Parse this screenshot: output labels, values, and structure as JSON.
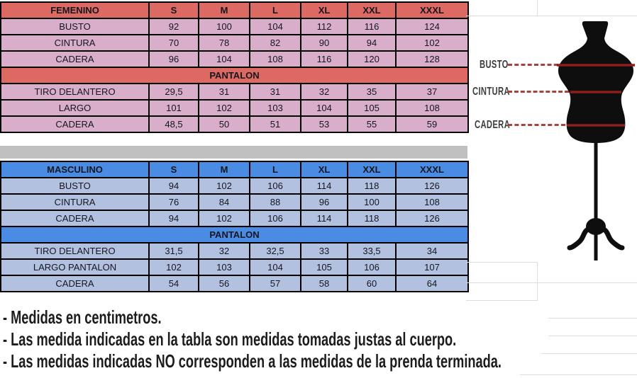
{
  "colors": {
    "female_header_bg": "#DC6A62",
    "female_cell_bg": "#D9AECB",
    "male_header_bg": "#4A8CE4",
    "male_cell_bg": "#B3C1E0",
    "spacer_bg": "#C0C0C0",
    "torso_line_red": "#8E1D1D",
    "dash_line_red": "#A8423C",
    "mannequin_black": "#0E0E0E"
  },
  "female_table": {
    "rows": [
      {
        "type": "header",
        "cells": [
          "FEMENINO",
          "S",
          "M",
          "L",
          "XL",
          "XXL",
          "XXXL"
        ]
      },
      {
        "type": "data",
        "cells": [
          "BUSTO",
          "92",
          "100",
          "104",
          "112",
          "116",
          "124"
        ]
      },
      {
        "type": "data",
        "cells": [
          "CINTURA",
          "70",
          "78",
          "82",
          "90",
          "94",
          "102"
        ]
      },
      {
        "type": "data",
        "cells": [
          "CADERA",
          "96",
          "104",
          "108",
          "116",
          "120",
          "128"
        ]
      },
      {
        "type": "section",
        "cells": [
          "PANTALON"
        ]
      },
      {
        "type": "data",
        "cells": [
          "TIRO DELANTERO",
          "29,5",
          "31",
          "31",
          "32",
          "35",
          "37"
        ]
      },
      {
        "type": "data",
        "cells": [
          "LARGO",
          "101",
          "102",
          "103",
          "104",
          "105",
          "108"
        ]
      },
      {
        "type": "data",
        "cells": [
          "CADERA",
          "48,5",
          "50",
          "51",
          "53",
          "55",
          "59"
        ]
      }
    ]
  },
  "male_table": {
    "rows": [
      {
        "type": "header",
        "cells": [
          "MASCULINO",
          "S",
          "M",
          "L",
          "XL",
          "XXL",
          "XXXL"
        ]
      },
      {
        "type": "data",
        "cells": [
          "BUSTO",
          "94",
          "102",
          "106",
          "114",
          "118",
          "126"
        ]
      },
      {
        "type": "data",
        "cells": [
          "CINTURA",
          "76",
          "84",
          "88",
          "96",
          "100",
          "108"
        ]
      },
      {
        "type": "data",
        "cells": [
          "CADERA",
          "94",
          "102",
          "106",
          "114",
          "118",
          "126"
        ]
      },
      {
        "type": "section",
        "cells": [
          "PANTALON"
        ]
      },
      {
        "type": "data",
        "cells": [
          "TIRO DELANTERO",
          "31,5",
          "32",
          "32,5",
          "33",
          "33,5",
          "34"
        ]
      },
      {
        "type": "data",
        "cells": [
          "LARGO PANTALON",
          "102",
          "103",
          "104",
          "105",
          "106",
          "107"
        ]
      },
      {
        "type": "data",
        "cells": [
          "CADERA",
          "54",
          "56",
          "57",
          "58",
          "60",
          "64"
        ]
      }
    ]
  },
  "diagram": {
    "labels": {
      "bust": "BUSTO",
      "waist": "CINTURA",
      "hip": "CADERA"
    }
  },
  "notes": {
    "line1": "- Medidas en centimetros.",
    "line2": "- Las medida indicadas en la tabla son medidas tomadas justas al cuerpo.",
    "line3": "- Las medidas indicadas NO corresponden a las medidas de la prenda terminada."
  }
}
